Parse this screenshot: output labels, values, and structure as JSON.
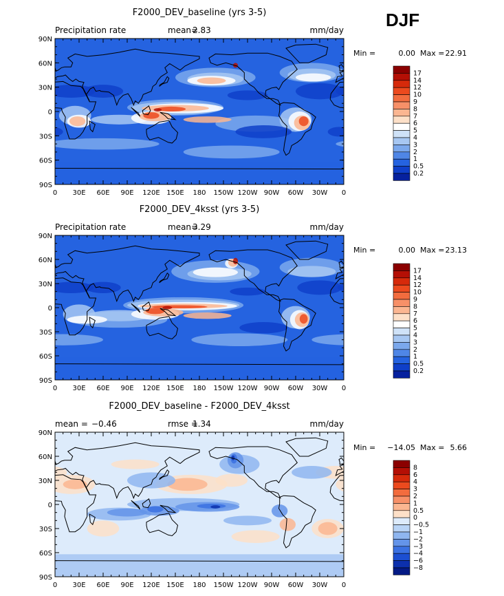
{
  "season": "DJF",
  "chart_data": [
    {
      "type": "heatmap",
      "title": "F2000_DEV_baseline (yrs 3-5)",
      "left_label": "Precipitation rate",
      "stat_label": "mean=",
      "stat_value": "2.83",
      "units": "mm/day",
      "min_label": "Min =",
      "min_value": "0.00",
      "max_label": "Max =",
      "max_value": "22.91",
      "lat_ticks": [
        "90N",
        "60N",
        "30N",
        "0",
        "30S",
        "60S",
        "90S"
      ],
      "lon_ticks": [
        "0",
        "30E",
        "60E",
        "90E",
        "120E",
        "150E",
        "180",
        "150W",
        "120W",
        "90W",
        "60W",
        "30W",
        "0"
      ],
      "colorbar": {
        "labels": [
          "17",
          "14",
          "12",
          "10",
          "9",
          "8",
          "7",
          "6",
          "5",
          "4",
          "3",
          "2",
          "1",
          "0.5",
          "0.2"
        ],
        "colors": [
          "#8b0000",
          "#b40f05",
          "#d62a0b",
          "#ec4a1e",
          "#f26c3e",
          "#f79068",
          "#fbb691",
          "#fde0c8",
          "#ffffff",
          "#cfe2f8",
          "#a7c7f2",
          "#7ba8ec",
          "#4f86e6",
          "#2563e0",
          "#0f3fc9",
          "#06219e"
        ]
      }
    },
    {
      "type": "heatmap",
      "title": "F2000_DEV_4ksst (yrs 3-5)",
      "left_label": "Precipitation rate",
      "stat_label": "mean=",
      "stat_value": "3.29",
      "units": "mm/day",
      "min_label": "Min =",
      "min_value": "0.00",
      "max_label": "Max =",
      "max_value": "23.13",
      "lat_ticks": [
        "90N",
        "60N",
        "30N",
        "0",
        "30S",
        "60S",
        "90S"
      ],
      "lon_ticks": [
        "0",
        "30E",
        "60E",
        "90E",
        "120E",
        "150E",
        "180",
        "150W",
        "120W",
        "90W",
        "60W",
        "30W",
        "0"
      ],
      "colorbar": {
        "labels": [
          "17",
          "14",
          "12",
          "10",
          "9",
          "8",
          "7",
          "6",
          "5",
          "4",
          "3",
          "2",
          "1",
          "0.5",
          "0.2"
        ],
        "colors": [
          "#8b0000",
          "#b40f05",
          "#d62a0b",
          "#ec4a1e",
          "#f26c3e",
          "#f79068",
          "#fbb691",
          "#fde0c8",
          "#ffffff",
          "#cfe2f8",
          "#a7c7f2",
          "#7ba8ec",
          "#4f86e6",
          "#2563e0",
          "#0f3fc9",
          "#06219e"
        ]
      }
    },
    {
      "type": "heatmap",
      "title": "F2000_DEV_baseline - F2000_DEV_4ksst",
      "left_label": "mean =",
      "left_value": "−0.46",
      "stat_label": "rmse =",
      "stat_value": "1.34",
      "units": "mm/day",
      "min_label": "Min =",
      "min_value": "−14.05",
      "max_label": "Max =",
      "max_value": "5.66",
      "lat_ticks": [
        "90N",
        "60N",
        "30N",
        "0",
        "30S",
        "60S",
        "90S"
      ],
      "lon_ticks": [
        "0",
        "30E",
        "60E",
        "90E",
        "120E",
        "150E",
        "180",
        "150W",
        "120W",
        "90W",
        "60W",
        "30W",
        "0"
      ],
      "colorbar": {
        "labels": [
          "8",
          "6",
          "4",
          "3",
          "2",
          "1",
          "0.5",
          "0",
          "−0.5",
          "−1",
          "−2",
          "−3",
          "−4",
          "−6",
          "−8"
        ],
        "colors": [
          "#8b0000",
          "#b40f05",
          "#d62a0b",
          "#ec4a1e",
          "#f26c3e",
          "#f79068",
          "#fbb691",
          "#fde0c8",
          "#ddebfb",
          "#b9d4f6",
          "#8fb6f0",
          "#6494e9",
          "#3b71e2",
          "#1c4fd2",
          "#0c30ad",
          "#041a85"
        ]
      }
    }
  ]
}
